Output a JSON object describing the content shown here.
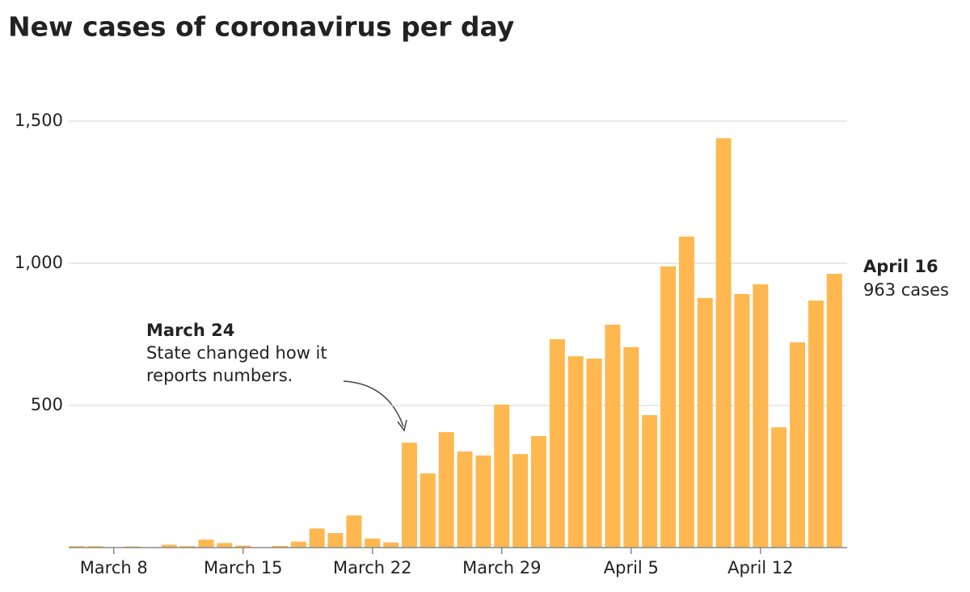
{
  "chart_data": {
    "type": "bar",
    "title": "New cases of coronavirus per day",
    "categories": [
      null,
      null,
      "March 8",
      null,
      null,
      null,
      null,
      null,
      null,
      "March 15",
      null,
      null,
      null,
      null,
      null,
      null,
      "March 22",
      null,
      null,
      null,
      null,
      null,
      null,
      "March 29",
      null,
      null,
      null,
      null,
      null,
      null,
      "April 5",
      null,
      null,
      null,
      null,
      null,
      null,
      "April 12",
      null,
      null,
      null,
      null
    ],
    "values": [
      5,
      5,
      0,
      4,
      0,
      10,
      5,
      28,
      16,
      7,
      0,
      6,
      21,
      67,
      51,
      113,
      32,
      18,
      369,
      261,
      406,
      338,
      324,
      503,
      329,
      392,
      733,
      673,
      665,
      784,
      705,
      466,
      989,
      1094,
      878,
      1440,
      892,
      926,
      423,
      722,
      869,
      963
    ],
    "color": "#ffb84f",
    "ylim": [
      0,
      1500
    ],
    "yticks": [
      500,
      {
        "value": 1000,
        "label": "1,000"
      },
      {
        "value": 1500,
        "label": "1,500"
      }
    ],
    "grid": true,
    "annotations": [
      {
        "title": "March 24",
        "lines": [
          "State changed how it",
          "reports numbers."
        ]
      },
      {
        "title": "April 16",
        "lines": [
          "963 cases"
        ]
      }
    ]
  }
}
